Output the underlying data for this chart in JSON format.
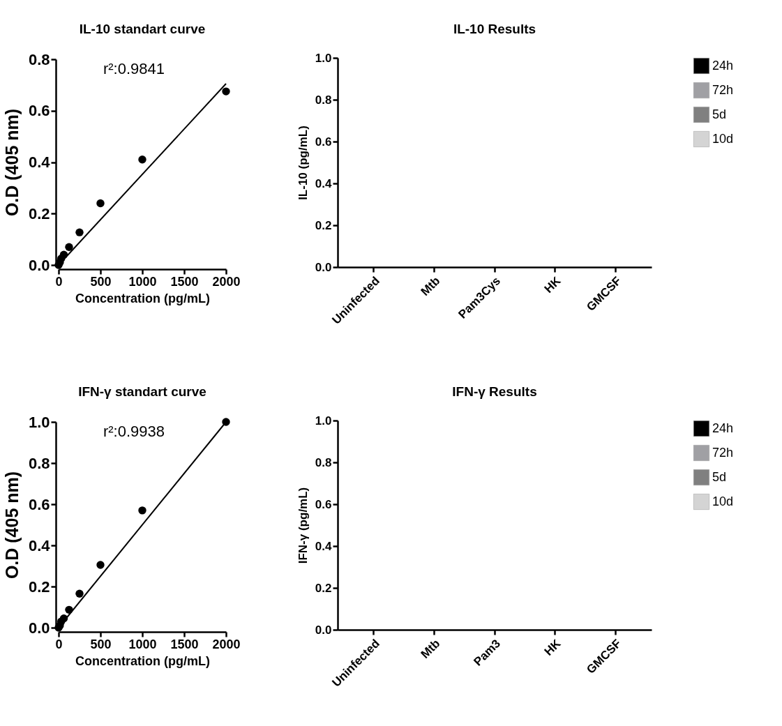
{
  "chart_data": [
    {
      "type": "scatter",
      "title": "IL-10 standart curve",
      "xlabel": "Concentration (pg/mL)",
      "ylabel": "O.D (405 nm)",
      "annotations": [
        "r²:0.9841"
      ],
      "xlim": [
        0,
        2000
      ],
      "xticks": [
        0,
        500,
        1000,
        1500,
        2000
      ],
      "ylim": [
        0,
        0.8
      ],
      "yticks": [
        {
          "value": 0,
          "label": "0.0"
        },
        {
          "value": 0.2,
          "label": "0.2"
        },
        {
          "value": 0.4,
          "label": "0.4"
        },
        {
          "value": 0.6,
          "label": "0.6"
        },
        {
          "value": 0.8,
          "label": "0.8"
        }
      ],
      "series": [
        {
          "type": "scatter",
          "marker": "circle",
          "color": "#000000",
          "x": [
            0,
            15.6,
            31.25,
            62.5,
            125,
            250,
            500,
            1000,
            2000
          ],
          "values": [
            0,
            0.01,
            0.025,
            0.04,
            0.07,
            0.127,
            0.24,
            0.41,
            0.675
          ]
        },
        {
          "type": "line",
          "color": "#000000",
          "x": [
            0,
            2000
          ],
          "values": [
            0,
            0.705
          ]
        }
      ]
    },
    {
      "type": "bar",
      "title": "IL-10 Results",
      "ylabel": "IL-10 (pg/mL)",
      "legend": "right",
      "categories": [
        "Uninfected",
        "Mtb",
        "Pam3Cys",
        "HK",
        "GMCSF"
      ],
      "ylim": [
        0,
        1
      ],
      "yticks": [
        {
          "value": 0,
          "label": "0.0"
        },
        {
          "value": 0.2,
          "label": "0.2"
        },
        {
          "value": 0.4,
          "label": "0.4"
        },
        {
          "value": 0.6,
          "label": "0.6"
        },
        {
          "value": 0.8,
          "label": "0.8"
        },
        {
          "value": 1,
          "label": "1.0"
        }
      ],
      "series": [
        {
          "name": "24h",
          "color": "#000000",
          "values": [
            null,
            null,
            null,
            null,
            null
          ]
        },
        {
          "name": "72h",
          "color": "#a0a0a4",
          "values": [
            null,
            null,
            null,
            null,
            null
          ]
        },
        {
          "name": "5d",
          "color": "#808080",
          "values": [
            null,
            null,
            null,
            null,
            null
          ]
        },
        {
          "name": "10d",
          "color": "#d4d4d4",
          "values": [
            null,
            null,
            null,
            null,
            null
          ]
        }
      ]
    },
    {
      "type": "scatter",
      "title": "IFN-γ standart curve",
      "xlabel": "Concentration (pg/mL)",
      "ylabel": "O.D (405 nm)",
      "annotations": [
        "r²:0.9938"
      ],
      "xlim": [
        0,
        2000
      ],
      "xticks": [
        0,
        500,
        1000,
        1500,
        2000
      ],
      "ylim": [
        0,
        1
      ],
      "yticks": [
        {
          "value": 0,
          "label": "0.0"
        },
        {
          "value": 0.2,
          "label": "0.2"
        },
        {
          "value": 0.4,
          "label": "0.4"
        },
        {
          "value": 0.6,
          "label": "0.6"
        },
        {
          "value": 0.8,
          "label": "0.8"
        },
        {
          "value": 1,
          "label": "1.0"
        }
      ],
      "series": [
        {
          "type": "scatter",
          "marker": "circle",
          "color": "#000000",
          "x": [
            0,
            15.6,
            31.25,
            62.5,
            125,
            250,
            500,
            1000,
            2000
          ],
          "values": [
            0,
            0.01,
            0.03,
            0.045,
            0.087,
            0.165,
            0.305,
            0.57,
            1.0
          ]
        },
        {
          "type": "line",
          "color": "#000000",
          "x": [
            0,
            2000
          ],
          "values": [
            0,
            1.0
          ]
        }
      ]
    },
    {
      "type": "bar",
      "title": "IFN-γ Results",
      "ylabel": "IFN-γ (pg/mL)",
      "legend": "right",
      "categories": [
        "Uninfected",
        "Mtb",
        "Pam3",
        "HK",
        "GMCSF"
      ],
      "ylim": [
        0,
        1
      ],
      "yticks": [
        {
          "value": 0,
          "label": "0.0"
        },
        {
          "value": 0.2,
          "label": "0.2"
        },
        {
          "value": 0.4,
          "label": "0.4"
        },
        {
          "value": 0.6,
          "label": "0.6"
        },
        {
          "value": 0.8,
          "label": "0.8"
        },
        {
          "value": 1,
          "label": "1.0"
        }
      ],
      "series": [
        {
          "name": "24h",
          "color": "#000000",
          "values": [
            null,
            null,
            null,
            null,
            null
          ]
        },
        {
          "name": "72h",
          "color": "#a0a0a4",
          "values": [
            null,
            null,
            null,
            null,
            null
          ]
        },
        {
          "name": "5d",
          "color": "#808080",
          "values": [
            null,
            null,
            null,
            null,
            null
          ]
        },
        {
          "name": "10d",
          "color": "#d4d4d4",
          "values": [
            null,
            null,
            null,
            null,
            null
          ]
        }
      ]
    }
  ]
}
